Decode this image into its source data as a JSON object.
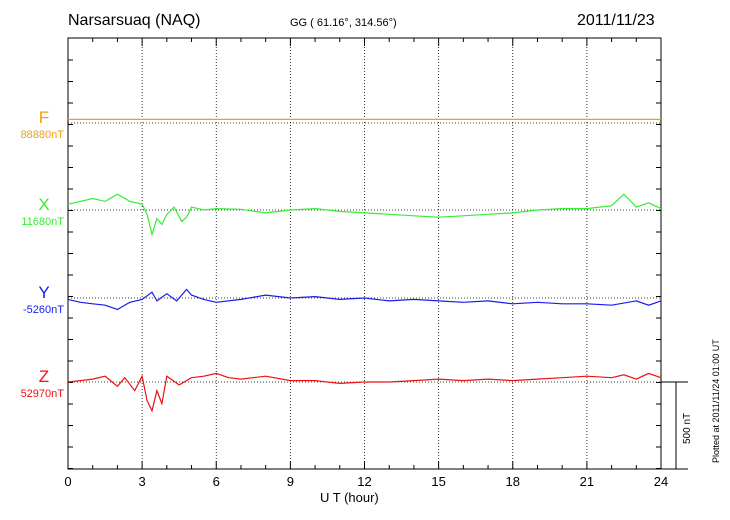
{
  "header": {
    "station": "Narsarsuaq (NAQ)",
    "coords": "GG ( 61.16°, 314.56°)",
    "date": "2011/11/23"
  },
  "footer": {
    "plotted": "Plotted at 2011/11/24 01:00 UT"
  },
  "chart_data": {
    "type": "line",
    "xlabel": "U T (hour)",
    "xlim": [
      0,
      24
    ],
    "xticks": [
      "0",
      "3",
      "6",
      "9",
      "12",
      "15",
      "18",
      "21",
      "24"
    ],
    "grid": true,
    "scale_bar": "500 nT",
    "series": [
      {
        "name": "F",
        "baseline_label": "88880nT",
        "color": "#f5a000",
        "baseline_nT": 88880,
        "x": [
          0,
          2,
          4,
          6,
          8,
          10,
          12,
          14,
          16,
          18,
          20,
          22,
          24
        ],
        "y": [
          25,
          25,
          25,
          25,
          25,
          25,
          25,
          25,
          25,
          25,
          25,
          25,
          25
        ]
      },
      {
        "name": "X",
        "baseline_label": "11680nT",
        "color": "#33ee33",
        "baseline_nT": 11680,
        "x": [
          0,
          0.5,
          1,
          1.5,
          2,
          2.5,
          3,
          3.2,
          3.4,
          3.6,
          3.8,
          4,
          4.3,
          4.6,
          4.8,
          5,
          5.5,
          6,
          7,
          8,
          9,
          10,
          11,
          12,
          13,
          14,
          15,
          16,
          17,
          18,
          19,
          20,
          21,
          22,
          22.5,
          23,
          23.5,
          24
        ],
        "y": [
          40,
          60,
          80,
          60,
          110,
          60,
          40,
          -30,
          -170,
          -60,
          -100,
          -30,
          20,
          -80,
          -50,
          20,
          0,
          10,
          5,
          -20,
          0,
          10,
          -10,
          -20,
          -30,
          -40,
          -50,
          -40,
          -30,
          -20,
          0,
          10,
          10,
          30,
          110,
          20,
          50,
          10
        ]
      },
      {
        "name": "Y",
        "baseline_label": "-5260nT",
        "color": "#1a1aee",
        "baseline_nT": -5260,
        "x": [
          0,
          0.5,
          1,
          1.5,
          2,
          2.5,
          3,
          3.4,
          3.6,
          4,
          4.4,
          4.8,
          5,
          5.5,
          6,
          7,
          8,
          9,
          10,
          11,
          12,
          13,
          14,
          15,
          16,
          17,
          18,
          19,
          20,
          21,
          22,
          23,
          23.5,
          24
        ],
        "y": [
          -10,
          -30,
          -40,
          -50,
          -80,
          -30,
          -10,
          40,
          -20,
          30,
          -20,
          60,
          20,
          -10,
          -30,
          -10,
          20,
          0,
          10,
          -10,
          0,
          -20,
          -10,
          -20,
          -30,
          -20,
          -40,
          -30,
          -40,
          -40,
          -50,
          -20,
          -50,
          -20
        ]
      },
      {
        "name": "Z",
        "baseline_label": "52970nT",
        "color": "#ee1111",
        "baseline_nT": 52970,
        "x": [
          0,
          0.5,
          1,
          1.5,
          2,
          2.3,
          2.7,
          3,
          3.2,
          3.4,
          3.6,
          3.8,
          4,
          4.5,
          5,
          5.5,
          6,
          6.5,
          7,
          8,
          9,
          10,
          11,
          12,
          13,
          14,
          15,
          16,
          17,
          18,
          19,
          20,
          21,
          22,
          22.5,
          23,
          23.5,
          24
        ],
        "y": [
          0,
          10,
          20,
          40,
          -30,
          30,
          -60,
          40,
          -130,
          -200,
          -60,
          -150,
          40,
          -20,
          30,
          40,
          60,
          30,
          20,
          40,
          10,
          10,
          -10,
          0,
          0,
          10,
          20,
          10,
          20,
          10,
          20,
          30,
          40,
          30,
          50,
          20,
          60,
          30
        ]
      }
    ]
  }
}
